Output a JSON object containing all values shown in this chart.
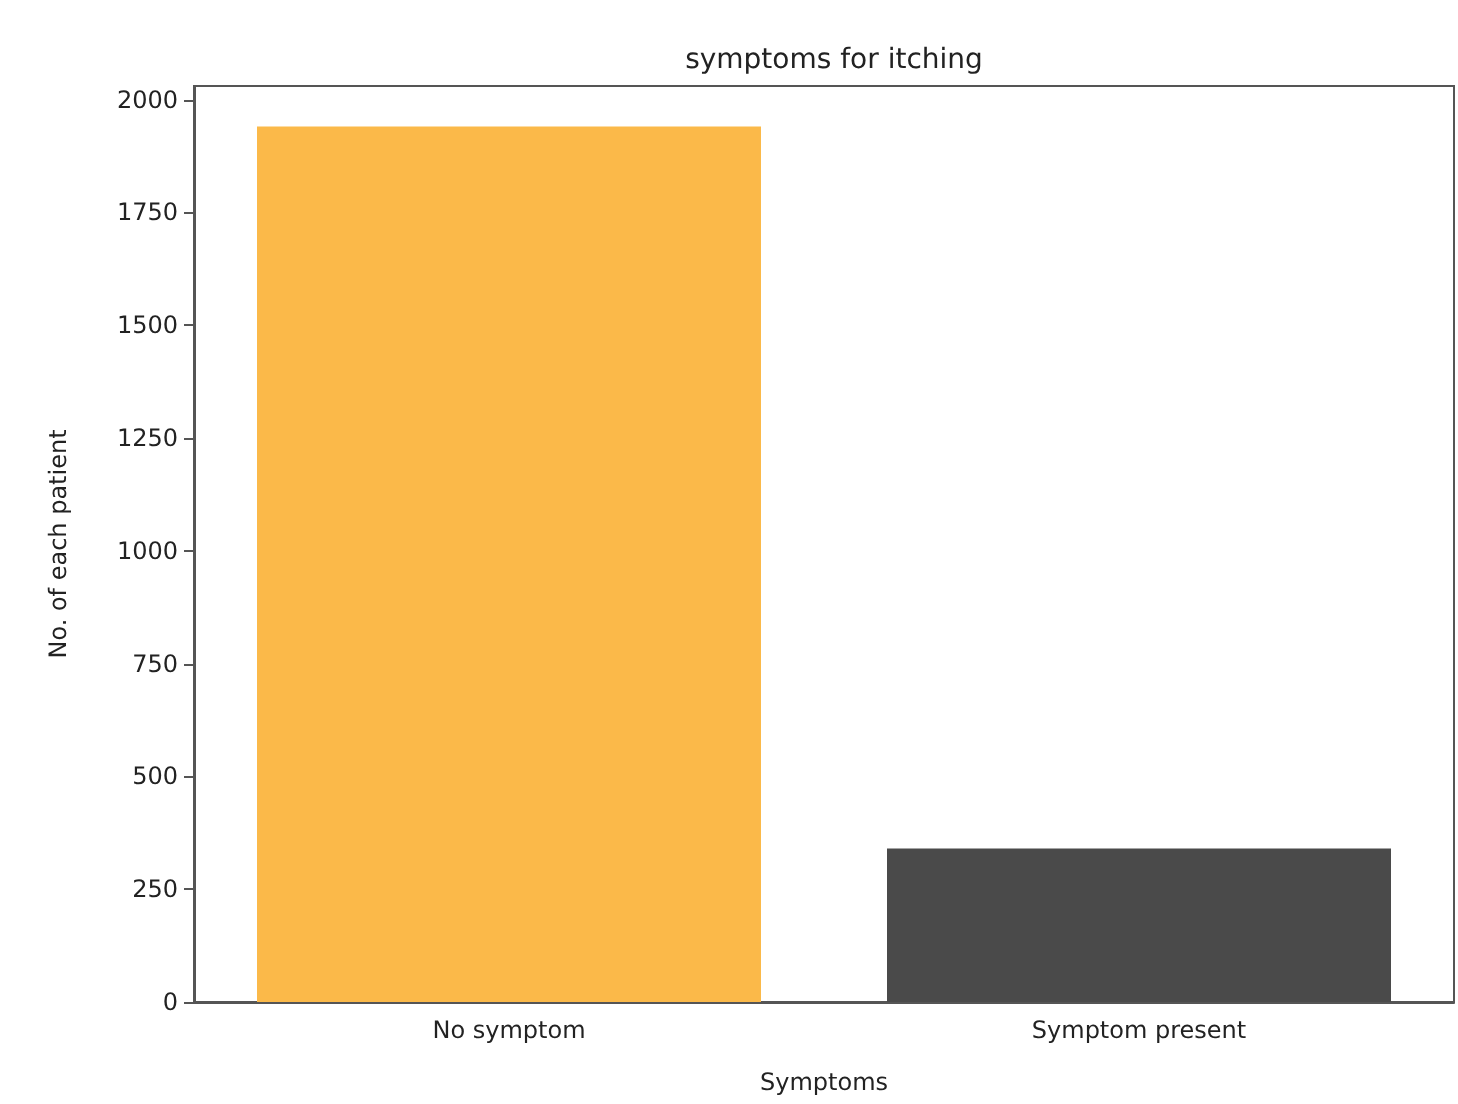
{
  "chart_data": {
    "type": "bar",
    "title": "symptoms for itching",
    "xlabel": "Symptoms",
    "ylabel": "No. of each patient",
    "categories": [
      "No symptom",
      "Symptom present"
    ],
    "values": [
      1940,
      340
    ],
    "colors": [
      "#fbb949",
      "#4a4a4a"
    ],
    "ylim": [
      0,
      2030
    ],
    "yticks": [
      0,
      250,
      500,
      750,
      1000,
      1250,
      1500,
      1750,
      2000
    ],
    "grid": false
  }
}
